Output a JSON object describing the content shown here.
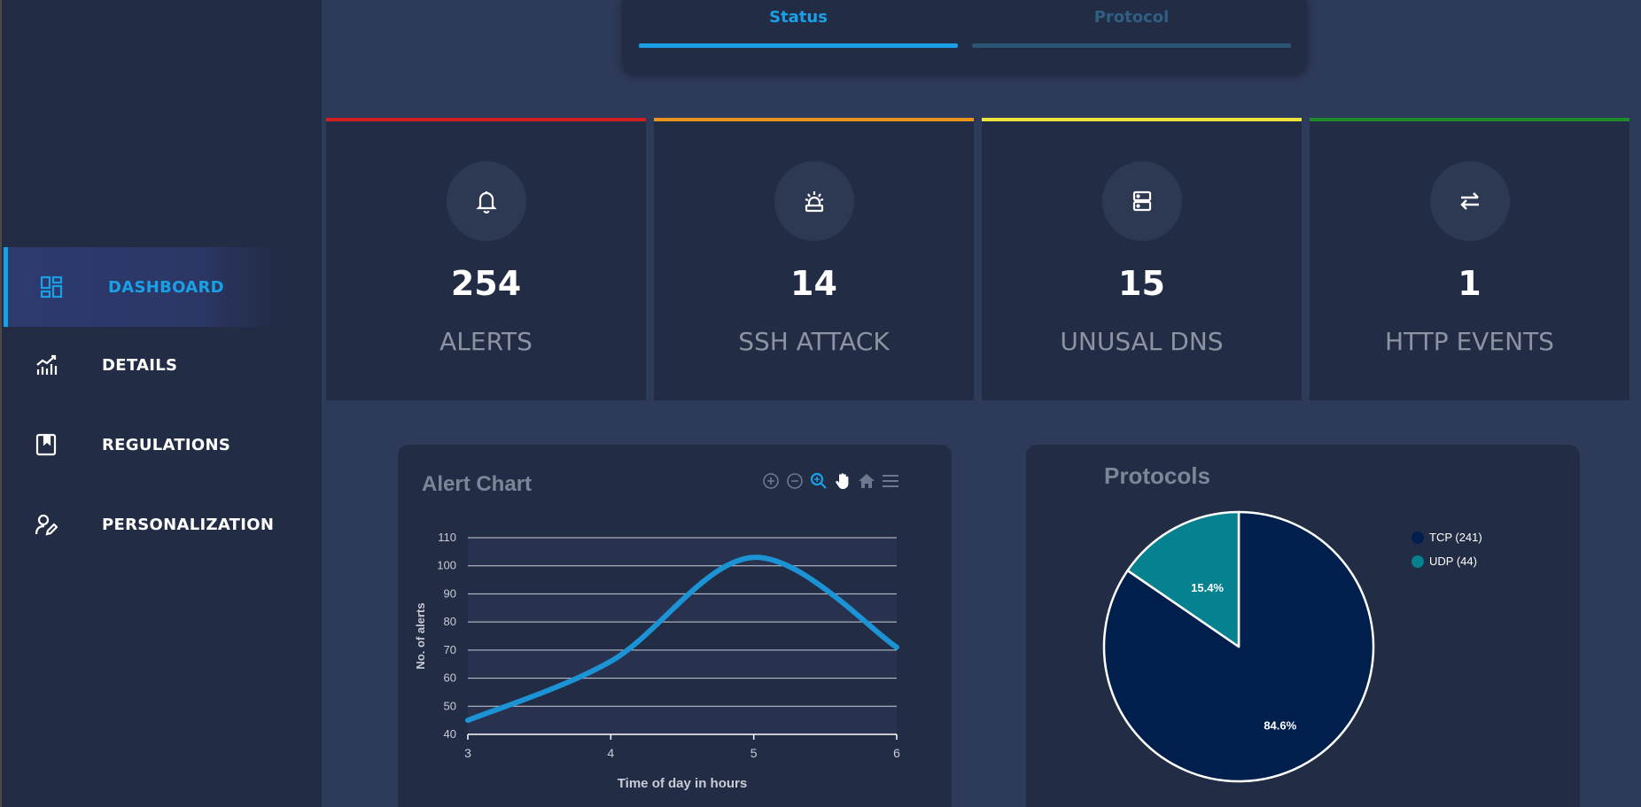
{
  "sidebar": {
    "items": [
      {
        "label": "DASHBOARD",
        "icon": "dashboard-icon",
        "active": true
      },
      {
        "label": "DETAILS",
        "icon": "chart-line-icon"
      },
      {
        "label": "REGULATIONS",
        "icon": "book-icon"
      },
      {
        "label": "PERSONALIZATION",
        "icon": "user-edit-icon"
      }
    ]
  },
  "tabs": [
    {
      "label": "Status",
      "active": true
    },
    {
      "label": "Protocol",
      "active": false
    }
  ],
  "cards": [
    {
      "value": "254",
      "label": "ALERTS",
      "icon": "bell-icon",
      "color": "#d11f1f"
    },
    {
      "value": "14",
      "label": "SSH ATTACK",
      "icon": "alarm-siren-icon",
      "color": "#e8931a"
    },
    {
      "value": "15",
      "label": "UNUSAL DNS",
      "icon": "server-icon",
      "color": "#ece43a"
    },
    {
      "value": "1",
      "label": "HTTP EVENTS",
      "icon": "exchange-icon",
      "color": "#1e8a2a"
    }
  ],
  "alert_chart": {
    "title": "Alert Chart",
    "toolbar": [
      "zoom-in-icon",
      "zoom-out-icon",
      "zoom-select-icon",
      "pan-hand-icon",
      "home-icon",
      "menu-icon"
    ]
  },
  "protocols": {
    "title": "Protocols",
    "legend": [
      "TCP (241)",
      "UDP (44)"
    ],
    "slice_labels": [
      "84.6%",
      "15.4%"
    ]
  },
  "colors": {
    "accent": "#1aa0e6",
    "line": "#1b93d4",
    "tcp": "#001f4d",
    "udp": "#058190"
  },
  "chart_data": [
    {
      "type": "line",
      "title": "Alert Chart",
      "xlabel": "Time of day in hours",
      "ylabel": "No. of alerts",
      "x": [
        3,
        4,
        5,
        6
      ],
      "y": [
        45,
        66,
        103,
        71
      ],
      "xticks": [
        "3",
        "4",
        "5",
        "6"
      ],
      "yticks": [
        "40",
        "50",
        "60",
        "70",
        "80",
        "90",
        "100",
        "110"
      ],
      "xlim": [
        3,
        6
      ],
      "ylim": [
        40,
        110
      ],
      "grid": true
    },
    {
      "type": "pie",
      "title": "Protocols",
      "labels": [
        "TCP (241)",
        "UDP (44)"
      ],
      "values": [
        241,
        44
      ],
      "percent_labels": [
        "84.6%",
        "15.4%"
      ],
      "legend": "top-right"
    }
  ]
}
